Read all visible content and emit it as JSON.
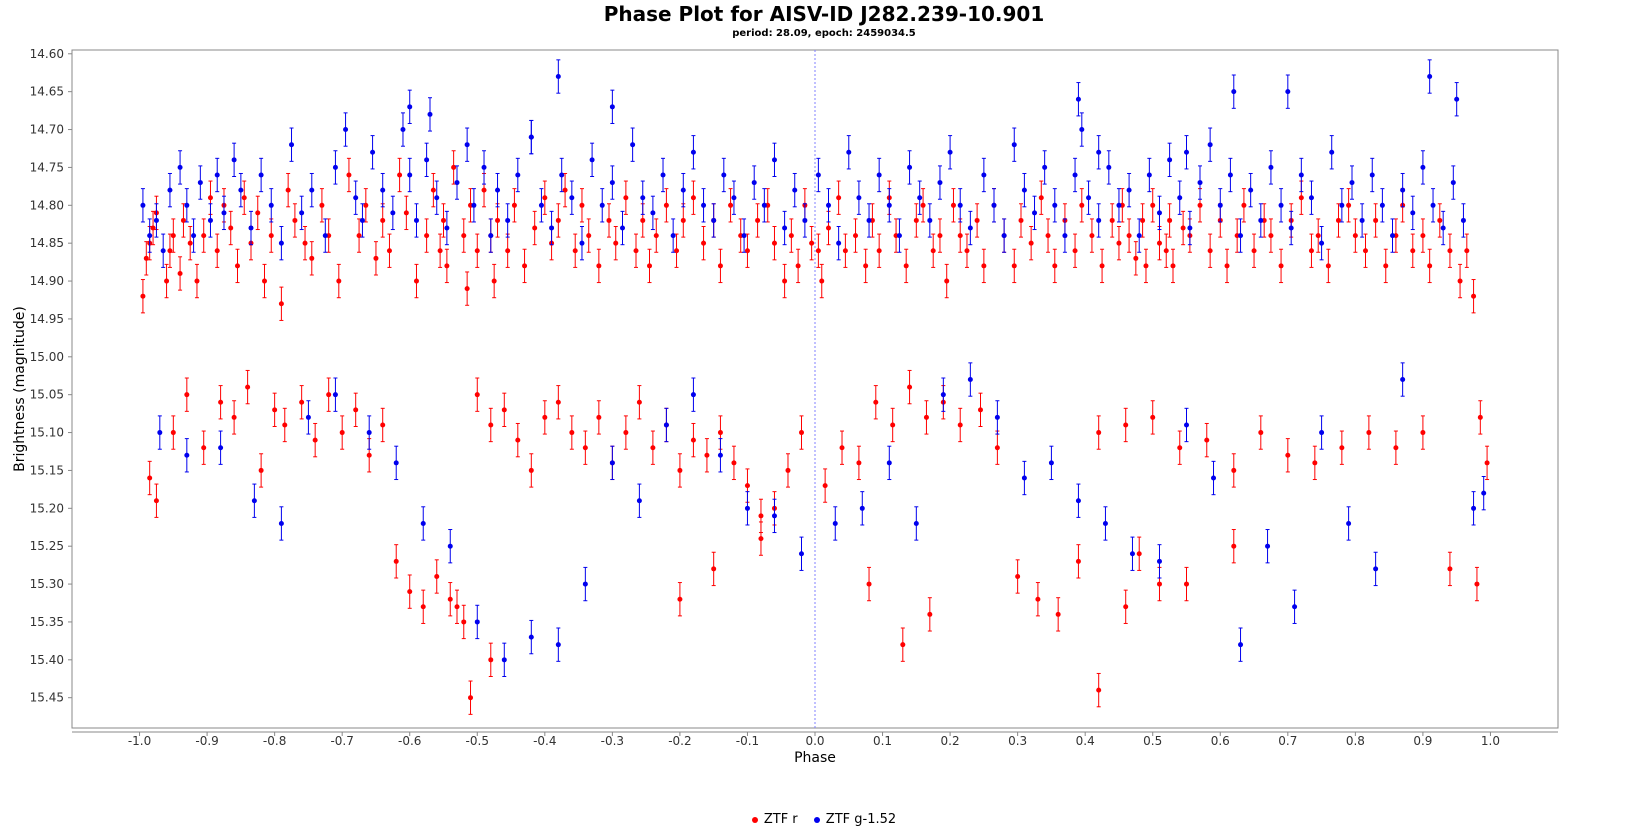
{
  "chart_data": {
    "type": "scatter",
    "title": "Phase Plot for AISV-ID J282.239-10.901",
    "subtitle": "period: 28.09, epoch: 2459034.5",
    "xlabel": "Phase",
    "ylabel": "Brightness (magnitude)",
    "xlim": [
      -1.1,
      1.1
    ],
    "ylim": [
      15.49,
      14.595
    ],
    "y_inverted": true,
    "grid": false,
    "legend_position": "bottom",
    "reference_line_x": 0.0,
    "x_ticks": [
      "-1.0",
      "-0.9",
      "-0.8",
      "-0.7",
      "-0.6",
      "-0.5",
      "-0.4",
      "-0.3",
      "-0.2",
      "-0.1",
      "0.0",
      "0.1",
      "0.2",
      "0.3",
      "0.4",
      "0.5",
      "0.6",
      "0.7",
      "0.8",
      "0.9",
      "1.0"
    ],
    "y_ticks": [
      "14.60",
      "14.65",
      "14.70",
      "14.75",
      "14.80",
      "14.85",
      "14.90",
      "14.95",
      "15.00",
      "15.05",
      "15.10",
      "15.15",
      "15.20",
      "15.25",
      "15.30",
      "15.35",
      "15.40",
      "15.45"
    ],
    "series": [
      {
        "name": "ZTF r",
        "color": "#ff0000",
        "err": 0.022,
        "phase": [
          -0.995,
          -0.99,
          -0.985,
          -0.98,
          -0.975,
          -0.96,
          -0.955,
          -0.95,
          -0.94,
          -0.935,
          -0.925,
          -0.915,
          -0.905,
          -0.895,
          -0.885,
          -0.875,
          -0.865,
          -0.855,
          -0.845,
          -0.835,
          -0.825,
          -0.815,
          -0.805,
          -0.79,
          -0.78,
          -0.77,
          -0.755,
          -0.745,
          -0.73,
          -0.72,
          -0.705,
          -0.69,
          -0.675,
          -0.665,
          -0.65,
          -0.64,
          -0.63,
          -0.615,
          -0.605,
          -0.59,
          -0.575,
          -0.565,
          -0.555,
          -0.55,
          -0.545,
          -0.535,
          -0.52,
          -0.515,
          -0.51,
          -0.5,
          -0.49,
          -0.48,
          -0.475,
          -0.47,
          -0.455,
          -0.445,
          -0.43,
          -0.415,
          -0.4,
          -0.39,
          -0.38,
          -0.37,
          -0.355,
          -0.345,
          -0.335,
          -0.32,
          -0.305,
          -0.295,
          -0.28,
          -0.265,
          -0.255,
          -0.245,
          -0.235,
          -0.22,
          -0.205,
          -0.195,
          -0.18,
          -0.165,
          -0.15,
          -0.14,
          -0.125,
          -0.11,
          -0.1,
          -0.085,
          -0.07,
          -0.06,
          -0.045,
          -0.035,
          -0.025,
          -0.015,
          -0.005,
          0.005,
          0.01,
          0.02,
          0.035,
          0.045,
          0.06,
          0.075,
          0.085,
          0.095,
          0.11,
          0.12,
          0.135,
          0.15,
          0.16,
          0.175,
          0.185,
          0.195,
          0.205,
          0.215,
          0.225,
          0.24,
          0.25,
          0.265,
          0.28,
          0.295,
          0.305,
          0.32,
          0.335,
          0.345,
          0.355,
          0.37,
          0.385,
          0.395,
          0.41,
          0.425,
          0.44,
          0.45,
          0.455,
          0.465,
          0.475,
          0.485,
          0.49,
          0.5,
          0.51,
          0.52,
          0.525,
          0.53,
          0.545,
          0.555,
          0.57,
          0.585,
          0.6,
          0.61,
          0.625,
          0.635,
          0.65,
          0.665,
          0.675,
          0.69,
          0.705,
          0.72,
          0.735,
          0.745,
          0.76,
          0.775,
          0.79,
          0.8,
          0.815,
          0.83,
          0.845,
          0.86,
          0.87,
          0.885,
          0.9,
          0.91,
          0.925,
          0.94,
          0.955,
          0.965,
          0.975,
          0.985,
          0.995,
          -0.985,
          -0.975,
          -0.95,
          -0.93,
          -0.905,
          -0.88,
          -0.86,
          -0.84,
          -0.82,
          -0.8,
          -0.785,
          -0.76,
          -0.74,
          -0.72,
          -0.7,
          -0.68,
          -0.66,
          -0.64,
          -0.62,
          -0.6,
          -0.58,
          -0.56,
          -0.54,
          -0.52,
          -0.5,
          -0.48,
          -0.46,
          -0.44,
          -0.42,
          -0.4,
          -0.38,
          -0.36,
          -0.34,
          -0.32,
          -0.3,
          -0.28,
          -0.26,
          -0.24,
          -0.22,
          -0.2,
          -0.18,
          -0.16,
          -0.14,
          -0.12,
          -0.1,
          -0.08,
          -0.06,
          -0.04,
          -0.02,
          0.015,
          0.04,
          0.065,
          0.09,
          0.115,
          0.14,
          0.165,
          0.19,
          0.215,
          0.245,
          0.27,
          0.3,
          0.33,
          0.36,
          0.39,
          0.42,
          0.46,
          0.5,
          0.54,
          0.58,
          0.62,
          0.66,
          0.7,
          0.74,
          0.78,
          0.82,
          0.86,
          0.9,
          0.94,
          0.98,
          0.46,
          0.48,
          0.51,
          -0.53,
          -0.51,
          -0.48,
          -0.2,
          -0.15,
          -0.08,
          0.08,
          0.13,
          0.17,
          0.42,
          0.55,
          0.62,
          0.88,
          0.94
        ],
        "mag": [
          14.92,
          14.87,
          14.85,
          14.83,
          14.81,
          14.9,
          14.86,
          14.84,
          14.89,
          14.82,
          14.85,
          14.9,
          14.84,
          14.79,
          14.86,
          14.8,
          14.83,
          14.88,
          14.79,
          14.85,
          14.81,
          14.9,
          14.84,
          14.93,
          14.78,
          14.82,
          14.85,
          14.87,
          14.8,
          14.84,
          14.9,
          14.76,
          14.84,
          14.8,
          14.87,
          14.82,
          14.86,
          14.76,
          14.81,
          14.9,
          14.84,
          14.78,
          14.86,
          14.82,
          14.88,
          14.75,
          14.84,
          14.91,
          14.8,
          14.86,
          14.78,
          14.84,
          14.9,
          14.82,
          14.86,
          14.8,
          14.88,
          14.83,
          14.79,
          14.85,
          14.82,
          14.78,
          14.86,
          14.8,
          14.84,
          14.88,
          14.82,
          14.85,
          14.79,
          14.86,
          14.82,
          14.88,
          14.84,
          14.8,
          14.86,
          14.82,
          14.79,
          14.85,
          14.82,
          14.88,
          14.8,
          14.84,
          14.86,
          14.82,
          14.8,
          14.85,
          14.9,
          14.84,
          14.88,
          14.8,
          14.85,
          14.86,
          14.9,
          14.83,
          14.79,
          14.86,
          14.84,
          14.88,
          14.82,
          14.86,
          14.79,
          14.84,
          14.88,
          14.82,
          14.8,
          14.86,
          14.84,
          14.9,
          14.8,
          14.84,
          14.86,
          14.82,
          14.88,
          14.8,
          14.84,
          14.88,
          14.82,
          14.85,
          14.79,
          14.84,
          14.88,
          14.82,
          14.86,
          14.8,
          14.84,
          14.88,
          14.82,
          14.85,
          14.8,
          14.84,
          14.87,
          14.82,
          14.88,
          14.8,
          14.85,
          14.86,
          14.82,
          14.88,
          14.83,
          14.84,
          14.8,
          14.86,
          14.82,
          14.88,
          14.84,
          14.8,
          14.86,
          14.82,
          14.84,
          14.88,
          14.82,
          14.79,
          14.86,
          14.84,
          14.88,
          14.82,
          14.8,
          14.84,
          14.86,
          14.82,
          14.88,
          14.84,
          14.8,
          14.86,
          14.84,
          14.88,
          14.82,
          14.86,
          14.9,
          14.86,
          14.92,
          15.08,
          15.14,
          15.16,
          15.19,
          15.1,
          15.05,
          15.12,
          15.06,
          15.08,
          15.04,
          15.15,
          15.07,
          15.09,
          15.06,
          15.11,
          15.05,
          15.1,
          15.07,
          15.13,
          15.09,
          15.27,
          15.31,
          15.33,
          15.29,
          15.32,
          15.35,
          15.05,
          15.09,
          15.07,
          15.11,
          15.15,
          15.08,
          15.06,
          15.1,
          15.12,
          15.08,
          15.14,
          15.1,
          15.06,
          15.12,
          15.09,
          15.15,
          15.11,
          15.13,
          15.1,
          15.14,
          15.17,
          15.21,
          15.2,
          15.15,
          15.1,
          15.17,
          15.12,
          15.14,
          15.06,
          15.09,
          15.04,
          15.08,
          15.06,
          15.09,
          15.07,
          15.12,
          15.29,
          15.32,
          15.34,
          15.27,
          15.1,
          15.09,
          15.08,
          15.12,
          15.11,
          15.15,
          15.1,
          15.13,
          15.14,
          15.12,
          15.1,
          15.12,
          15.1,
          15.28,
          15.3,
          15.33,
          15.26,
          15.3,
          15.33,
          15.45,
          15.4,
          15.32,
          15.28,
          15.24,
          15.3,
          15.38,
          15.34,
          15.44,
          15.3,
          15.25
        ]
      },
      {
        "name": "ZTF g-1.52",
        "color": "#0000ee",
        "err": 0.022,
        "phase": [
          -0.995,
          -0.985,
          -0.975,
          -0.965,
          -0.955,
          -0.94,
          -0.93,
          -0.92,
          -0.91,
          -0.895,
          -0.885,
          -0.875,
          -0.86,
          -0.85,
          -0.835,
          -0.82,
          -0.805,
          -0.79,
          -0.775,
          -0.76,
          -0.745,
          -0.725,
          -0.71,
          -0.695,
          -0.68,
          -0.67,
          -0.655,
          -0.64,
          -0.625,
          -0.61,
          -0.6,
          -0.59,
          -0.575,
          -0.56,
          -0.545,
          -0.53,
          -0.515,
          -0.505,
          -0.49,
          -0.48,
          -0.47,
          -0.455,
          -0.44,
          -0.42,
          -0.405,
          -0.39,
          -0.375,
          -0.36,
          -0.345,
          -0.33,
          -0.315,
          -0.3,
          -0.285,
          -0.27,
          -0.255,
          -0.24,
          -0.225,
          -0.21,
          -0.195,
          -0.18,
          -0.165,
          -0.15,
          -0.135,
          -0.12,
          -0.105,
          -0.09,
          -0.075,
          -0.06,
          -0.045,
          -0.03,
          -0.015,
          0.005,
          0.02,
          0.035,
          0.05,
          0.065,
          0.08,
          0.095,
          0.11,
          0.125,
          0.14,
          0.155,
          0.17,
          0.185,
          0.2,
          0.215,
          0.23,
          0.25,
          0.265,
          0.28,
          0.295,
          0.31,
          0.325,
          0.34,
          0.355,
          0.37,
          0.385,
          0.395,
          0.405,
          0.42,
          0.435,
          0.45,
          0.465,
          0.48,
          0.495,
          0.51,
          0.525,
          0.54,
          0.555,
          0.57,
          0.585,
          0.6,
          0.615,
          0.63,
          0.645,
          0.66,
          0.675,
          0.69,
          0.705,
          0.72,
          0.735,
          0.75,
          0.765,
          0.78,
          0.795,
          0.81,
          0.825,
          0.84,
          0.855,
          0.87,
          0.885,
          0.9,
          0.915,
          0.93,
          0.945,
          0.96,
          0.975,
          0.99,
          -0.97,
          -0.93,
          -0.88,
          -0.83,
          -0.79,
          -0.75,
          -0.71,
          -0.66,
          -0.62,
          -0.58,
          -0.54,
          -0.5,
          -0.46,
          -0.42,
          -0.38,
          -0.34,
          -0.3,
          -0.26,
          -0.22,
          -0.18,
          -0.14,
          -0.1,
          -0.06,
          -0.02,
          0.03,
          0.07,
          0.11,
          0.15,
          0.19,
          0.23,
          0.27,
          0.31,
          0.35,
          0.39,
          0.43,
          0.47,
          0.51,
          0.55,
          0.59,
          0.63,
          0.67,
          0.71,
          0.75,
          0.79,
          0.83,
          0.87,
          0.91,
          0.95,
          -0.6,
          -0.57,
          -0.42,
          -0.38,
          -0.3,
          0.39,
          0.42,
          0.55,
          0.62,
          0.7,
          -0.75,
          0.25
        ],
        "mag": [
          14.8,
          14.84,
          14.82,
          14.86,
          14.78,
          14.75,
          14.8,
          14.84,
          14.77,
          14.82,
          14.76,
          14.81,
          14.74,
          14.78,
          14.83,
          14.76,
          14.8,
          14.85,
          14.72,
          14.81,
          14.78,
          14.84,
          14.75,
          14.7,
          14.79,
          14.82,
          14.73,
          14.78,
          14.81,
          14.7,
          14.76,
          14.82,
          14.74,
          14.79,
          14.83,
          14.77,
          14.72,
          14.8,
          14.75,
          14.84,
          14.78,
          14.82,
          14.76,
          14.71,
          14.8,
          14.83,
          14.76,
          14.79,
          14.85,
          14.74,
          14.8,
          14.77,
          14.83,
          14.72,
          14.79,
          14.81,
          14.76,
          14.84,
          14.78,
          14.73,
          14.8,
          14.82,
          14.76,
          14.79,
          14.84,
          14.77,
          14.8,
          14.74,
          14.83,
          14.78,
          14.82,
          14.76,
          14.8,
          14.85,
          14.73,
          14.79,
          14.82,
          14.76,
          14.8,
          14.84,
          14.75,
          14.79,
          14.82,
          14.77,
          14.73,
          14.8,
          14.83,
          14.76,
          14.8,
          14.84,
          14.72,
          14.78,
          14.81,
          14.75,
          14.8,
          14.84,
          14.76,
          14.7,
          14.79,
          14.82,
          14.75,
          14.8,
          14.78,
          14.84,
          14.76,
          14.81,
          14.74,
          14.79,
          14.83,
          14.77,
          14.72,
          14.8,
          14.76,
          14.84,
          14.78,
          14.82,
          14.75,
          14.8,
          14.83,
          14.76,
          14.79,
          14.85,
          14.73,
          14.8,
          14.77,
          14.82,
          14.76,
          14.8,
          14.84,
          14.78,
          14.81,
          14.75,
          14.8,
          14.83,
          14.77,
          14.82,
          15.2,
          15.18,
          15.1,
          15.13,
          15.12,
          15.19,
          15.22,
          15.08,
          15.05,
          15.1,
          15.14,
          15.22,
          15.25,
          15.35,
          15.4,
          15.37,
          15.38,
          15.3,
          15.14,
          15.19,
          15.09,
          15.05,
          15.13,
          15.2,
          15.21,
          15.26,
          15.22,
          15.2,
          15.14,
          15.22,
          15.05,
          15.03,
          15.08,
          15.16,
          15.14,
          15.19,
          15.22,
          15.26,
          15.27,
          15.09,
          15.16,
          15.38,
          15.25,
          15.33,
          15.1,
          15.22,
          15.28,
          15.03,
          14.63,
          14.66,
          14.67,
          14.68,
          14.71,
          14.63,
          14.67,
          14.66,
          14.73,
          14.73,
          14.65,
          14.65
        ]
      }
    ]
  }
}
